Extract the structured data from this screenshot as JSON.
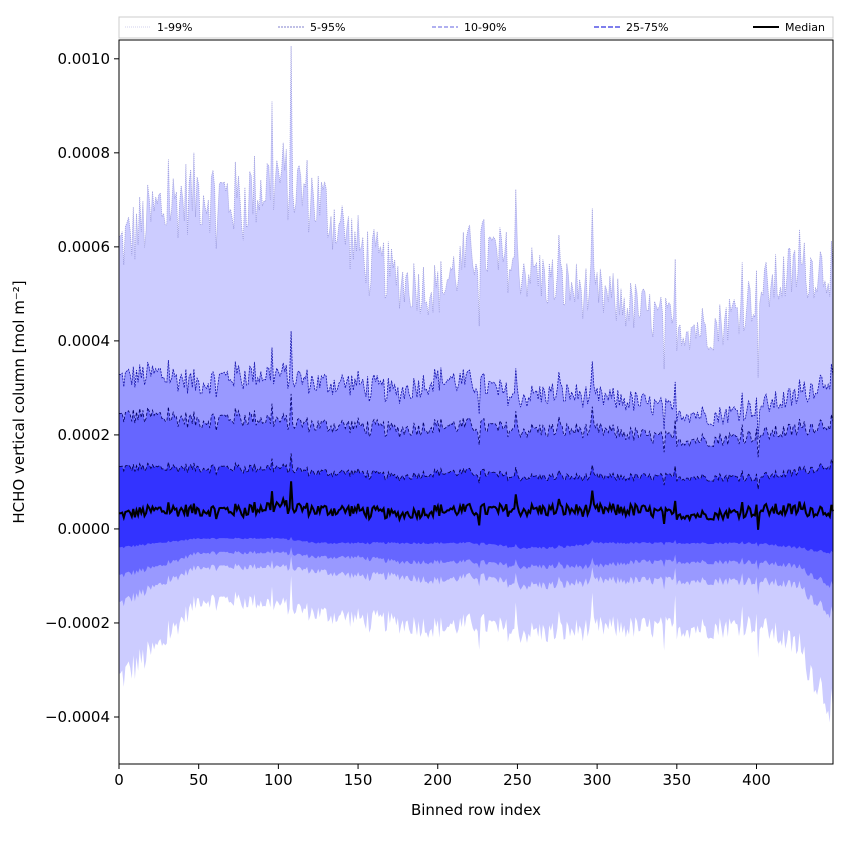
{
  "chart_data": {
    "type": "area",
    "title": "",
    "xlabel": "Binned row index",
    "ylabel": "HCHO vertical column [mol m⁻²]",
    "xlim": [
      0,
      448
    ],
    "ylim": [
      -0.0005,
      0.00104
    ],
    "xticks": [
      0,
      50,
      100,
      150,
      200,
      250,
      300,
      350,
      400
    ],
    "xtick_labels": [
      "0",
      "50",
      "100",
      "150",
      "200",
      "250",
      "300",
      "350",
      "400"
    ],
    "yticks": [
      -0.0004,
      -0.0002,
      0.0,
      0.0002,
      0.0004,
      0.0006,
      0.0008,
      0.001
    ],
    "ytick_labels": [
      "−0.0004",
      "−0.0002",
      "0.0000",
      "0.0002",
      "0.0004",
      "0.0006",
      "0.0008",
      "0.0010"
    ],
    "grid": false,
    "legend": {
      "placement": "top",
      "entries": [
        {
          "label": "1-99%",
          "color": "#c8c8f0"
        },
        {
          "label": "5-95%",
          "color": "#8080d8"
        },
        {
          "label": "10-90%",
          "color": "#7070e0"
        },
        {
          "label": "25-75%",
          "color": "#5050e8"
        },
        {
          "label": "Median",
          "color": "#000000"
        }
      ]
    },
    "x": [
      0,
      25,
      50,
      75,
      100,
      125,
      150,
      175,
      200,
      225,
      250,
      275,
      300,
      325,
      350,
      375,
      400,
      425,
      448
    ],
    "series": [
      {
        "name": "1-99%",
        "color": "#ccccff",
        "lower": [
          -0.00032,
          -0.00025,
          -0.00015,
          -0.00015,
          -0.00016,
          -0.00018,
          -0.00019,
          -0.0002,
          -0.00021,
          -0.0002,
          -0.00022,
          -0.00022,
          -0.00021,
          -0.00021,
          -0.00021,
          -0.00021,
          -0.0002,
          -0.00025,
          -0.00038
        ],
        "upper": [
          0.0006,
          0.00068,
          0.00072,
          0.0007,
          0.00075,
          0.0007,
          0.0006,
          0.00053,
          0.00051,
          0.0006,
          0.00056,
          0.00052,
          0.0005,
          0.00047,
          0.00043,
          0.00043,
          0.0005,
          0.00055,
          0.00056
        ]
      },
      {
        "name": "5-95%",
        "color": "#9999ff",
        "lower": [
          -0.00016,
          -0.00012,
          -8e-05,
          -8e-05,
          -8e-05,
          -9e-05,
          -0.0001,
          -0.0001,
          -0.00011,
          -0.0001,
          -0.00012,
          -0.00012,
          -0.00011,
          -0.00011,
          -0.00011,
          -0.00011,
          -0.00011,
          -0.00012,
          -0.00018
        ],
        "upper": [
          0.00032,
          0.00033,
          0.00031,
          0.00033,
          0.00033,
          0.00031,
          0.00031,
          0.00029,
          0.00032,
          0.00031,
          0.00028,
          0.00029,
          0.00028,
          0.00027,
          0.00025,
          0.00024,
          0.00026,
          0.00028,
          0.00033
        ]
      },
      {
        "name": "10-90%",
        "color": "#6666ff",
        "lower": [
          -0.0001,
          -8e-05,
          -5e-05,
          -5e-05,
          -5e-05,
          -6e-05,
          -6e-05,
          -7e-05,
          -7e-05,
          -7e-05,
          -8e-05,
          -8e-05,
          -8e-05,
          -7e-05,
          -7e-05,
          -7e-05,
          -7e-05,
          -8e-05,
          -0.00012
        ],
        "upper": [
          0.00024,
          0.00024,
          0.00023,
          0.00024,
          0.00023,
          0.00022,
          0.00022,
          0.00021,
          0.00022,
          0.00022,
          0.00021,
          0.00021,
          0.00021,
          0.0002,
          0.00019,
          0.00019,
          0.0002,
          0.00021,
          0.00023
        ]
      },
      {
        "name": "25-75%",
        "color": "#3333ff",
        "lower": [
          -4e-05,
          -3e-05,
          -2e-05,
          -2e-05,
          -2e-05,
          -3e-05,
          -3e-05,
          -3e-05,
          -3e-05,
          -3e-05,
          -4e-05,
          -4e-05,
          -3e-05,
          -3e-05,
          -3e-05,
          -3e-05,
          -3e-05,
          -4e-05,
          -5e-05
        ],
        "upper": [
          0.00013,
          0.00013,
          0.00013,
          0.00013,
          0.00013,
          0.00012,
          0.00012,
          0.00011,
          0.00012,
          0.00012,
          0.00011,
          0.00011,
          0.00011,
          0.00011,
          0.00011,
          0.00011,
          0.00011,
          0.00012,
          0.00014
        ]
      },
      {
        "name": "Median",
        "color": "#000000",
        "values": [
          3e-05,
          4e-05,
          4e-05,
          4e-05,
          5e-05,
          4e-05,
          4e-05,
          3e-05,
          4e-05,
          4e-05,
          4e-05,
          4e-05,
          4e-05,
          4e-05,
          3e-05,
          3e-05,
          4e-05,
          4e-05,
          4e-05
        ]
      }
    ]
  }
}
